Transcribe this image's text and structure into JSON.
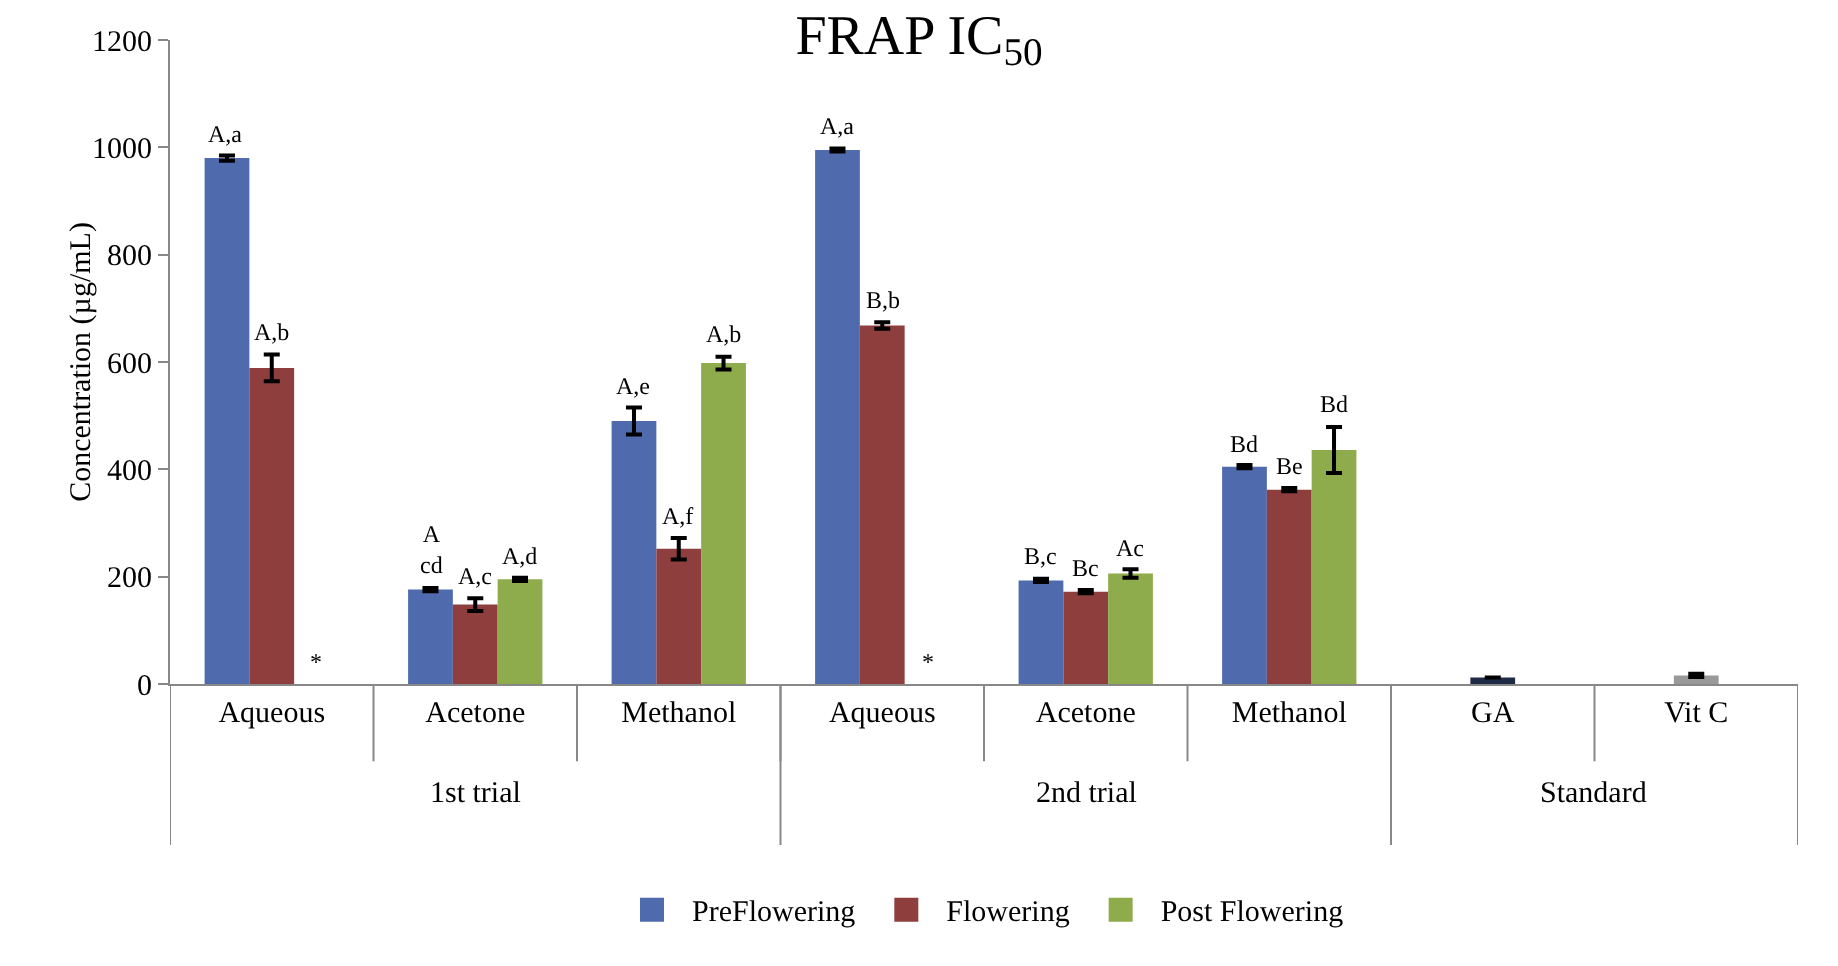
{
  "chart_data": {
    "type": "bar",
    "title": "FRAP IC$_{50}$",
    "ylabel": "Concentration (µg/mL)",
    "categories": [
      "Aqueous",
      "Acetone",
      "Methanol",
      "Aqueous",
      "Acetone",
      "Methanol",
      "GA",
      "Vit C"
    ],
    "series": [
      {
        "name": "PreFlowering",
        "color": "#4f6aad",
        "values": [
          980,
          176,
          490,
          995,
          193,
          405,
          null,
          null
        ],
        "errors": [
          5,
          3,
          25,
          3,
          3,
          3,
          null,
          null
        ],
        "value_labels": [
          "A,a",
          "A\ncd",
          "A,e",
          "A,a",
          "B,c",
          "Bd",
          null,
          null
        ]
      },
      {
        "name": "Flowering",
        "color": "#8e3e3d",
        "colors": [
          null,
          null,
          null,
          null,
          null,
          null,
          "#1f2a44",
          "#999999"
        ],
        "values": [
          589,
          148,
          252,
          668,
          172,
          362,
          12,
          16
        ],
        "errors": [
          25,
          12,
          20,
          6,
          3,
          3,
          null,
          3
        ],
        "value_labels": [
          "A,b",
          "A,c",
          "A,f",
          "B,b",
          "Bc",
          "Be",
          null,
          null
        ]
      },
      {
        "name": "Post Flowering",
        "color": "#8fac4c",
        "values": [
          null,
          195,
          598,
          null,
          206,
          436,
          null,
          null
        ],
        "errors": [
          null,
          3,
          12,
          null,
          8,
          43,
          null,
          null
        ],
        "value_labels": [
          "*",
          "A,d",
          "A,b",
          "*",
          "Ac",
          "Bd",
          null,
          null
        ]
      }
    ],
    "annotations": [
      "1st trial",
      "2nd trial",
      "Standard"
    ],
    "ylim": [
      0,
      1200
    ],
    "yticks": [
      0,
      200,
      400,
      600,
      800,
      1000,
      1200
    ],
    "grid": false,
    "legend": "bottom"
  }
}
